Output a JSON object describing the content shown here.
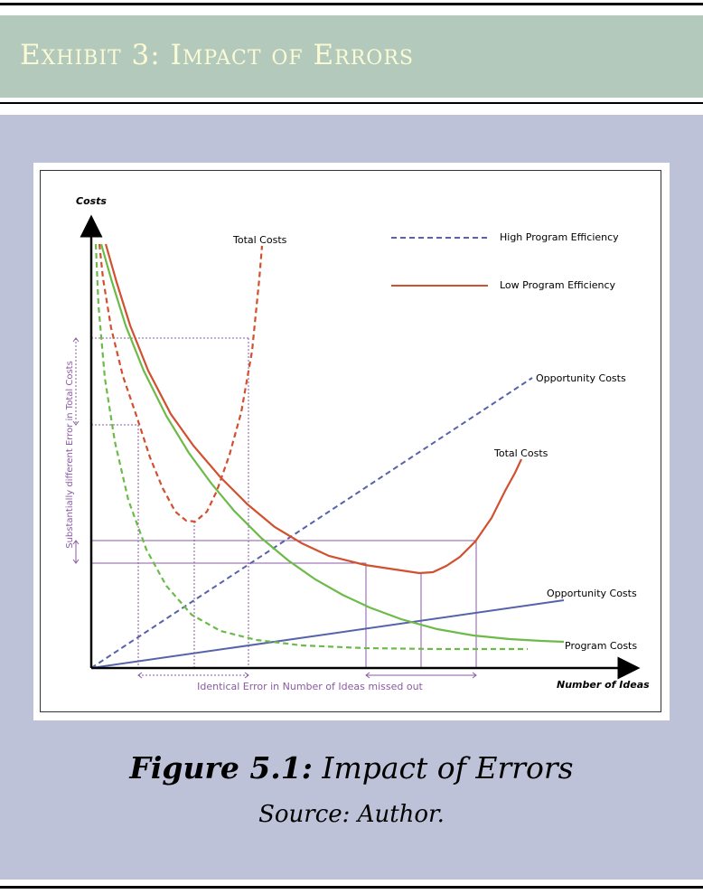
{
  "exhibit": {
    "title": "Exhibit 3: Impact of Errors"
  },
  "caption": {
    "label": "Figure 5.1:",
    "title": "Impact of Errors",
    "source": "Source: Author."
  },
  "colors": {
    "header_bg": "#b3c9bc",
    "header_text": "#fbfbd4",
    "panel_bg": "#bdc2d8",
    "red": "#d1502f",
    "green": "#6cbb48",
    "blue": "#5663aa",
    "purple": "#8b5aa5"
  },
  "diagram": {
    "y_axis_label": "Costs",
    "x_axis_label": "Number of Ideas",
    "legend": [
      {
        "label": "High Program Efficiency",
        "style": "dashed"
      },
      {
        "label": "Low Program Efficiency",
        "style": "solid"
      }
    ],
    "labels": {
      "total_costs_high": "Total Costs",
      "opportunity_costs_high": "Opportunity Costs",
      "total_costs_low": "Total Costs",
      "opportunity_costs_low": "Opportunity Costs",
      "program_costs": "Program Costs"
    },
    "error_labels": {
      "vertical": "Substantially different Error in Total Costs",
      "horizontal": "Identical Error in Number of Ideas missed out"
    }
  }
}
